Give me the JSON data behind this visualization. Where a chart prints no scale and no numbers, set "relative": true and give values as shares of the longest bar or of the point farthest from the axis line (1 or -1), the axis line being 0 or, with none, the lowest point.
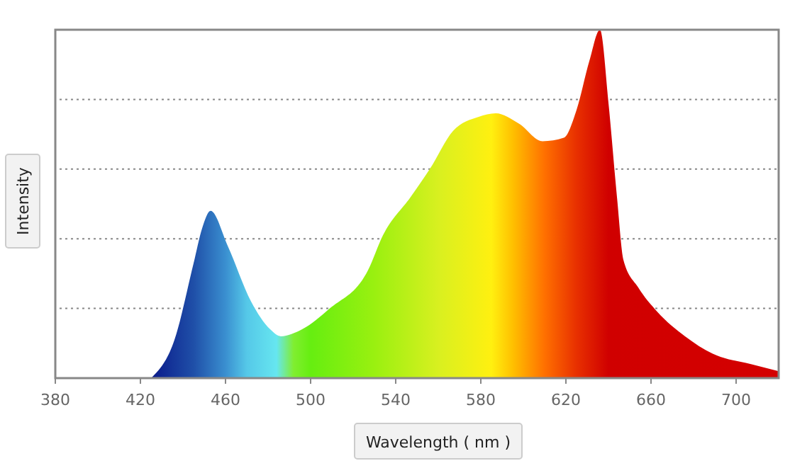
{
  "chart_data": {
    "type": "area",
    "xlabel": "Wavelength ( nm )",
    "ylabel": "Intensity",
    "relative": true,
    "grid": true,
    "xlim": [
      380,
      720
    ],
    "xticks": [
      380,
      420,
      460,
      500,
      540,
      580,
      620,
      660,
      700
    ],
    "x": [
      425,
      436,
      445,
      449,
      453,
      461,
      472,
      481,
      486,
      496,
      509,
      527,
      534,
      547,
      556,
      567,
      579,
      587,
      598,
      609,
      619,
      625,
      631,
      636,
      640,
      644,
      647,
      654,
      663,
      676,
      689,
      707,
      720
    ],
    "values": [
      0,
      0.11,
      0.33,
      0.43,
      0.48,
      0.38,
      0.22,
      0.14,
      0.12,
      0.14,
      0.2,
      0.31,
      0.41,
      0.52,
      0.6,
      0.71,
      0.75,
      0.76,
      0.73,
      0.68,
      0.69,
      0.77,
      0.91,
      1.0,
      0.79,
      0.52,
      0.34,
      0.26,
      0.19,
      0.12,
      0.07,
      0.04,
      0.02
    ]
  }
}
